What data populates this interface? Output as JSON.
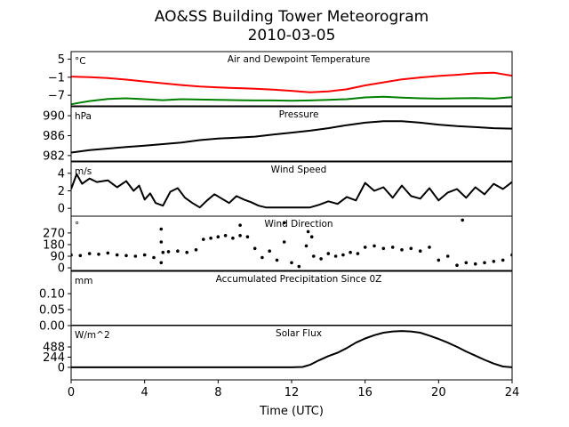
{
  "figure": {
    "title": "AO&SS Building Tower Meteorogram",
    "subtitle": "2010-03-05",
    "xlabel": "Time (UTC)"
  },
  "chart_data": [
    {
      "id": "temperature",
      "type": "line",
      "title": "Air and Dewpoint Temperature",
      "unit": "°C",
      "yticks": [
        5,
        -1,
        -7
      ],
      "yticklabels": [
        "5",
        "−1",
        "−7"
      ],
      "ylim": [
        -10.5,
        7.5
      ],
      "xlim": [
        0,
        24
      ],
      "series": [
        {
          "color": "#ff0000",
          "x": [
            0,
            1,
            2,
            3,
            4,
            5,
            6,
            7,
            8,
            9,
            10,
            11,
            12,
            13,
            14,
            15,
            16,
            17,
            18,
            19,
            20,
            21,
            22,
            23,
            24
          ],
          "values": [
            -0.8,
            -1.0,
            -1.3,
            -1.8,
            -2.4,
            -3.0,
            -3.6,
            -4.1,
            -4.4,
            -4.6,
            -4.8,
            -5.1,
            -5.5,
            -6.0,
            -5.7,
            -5.0,
            -3.7,
            -2.7,
            -1.7,
            -1.1,
            -0.6,
            -0.2,
            0.3,
            0.5,
            -0.5
          ]
        },
        {
          "color": "#008000",
          "x": [
            0,
            0.5,
            1,
            2,
            3,
            4,
            5,
            6,
            7,
            8,
            9,
            10,
            11,
            12,
            13,
            14,
            15,
            16,
            17,
            18,
            19,
            20,
            21,
            22,
            23,
            24
          ],
          "values": [
            -10.0,
            -9.4,
            -8.9,
            -8.2,
            -8.0,
            -8.3,
            -8.6,
            -8.3,
            -8.4,
            -8.5,
            -8.6,
            -8.7,
            -8.7,
            -8.8,
            -8.7,
            -8.5,
            -8.3,
            -7.7,
            -7.5,
            -7.8,
            -8.0,
            -8.1,
            -8.0,
            -7.9,
            -8.1,
            -7.6
          ]
        }
      ]
    },
    {
      "id": "pressure",
      "type": "line",
      "title": "Pressure",
      "unit": "hPa",
      "yticks": [
        990,
        986,
        982
      ],
      "yticklabels": [
        "990",
        "986",
        "982"
      ],
      "ylim": [
        980.9,
        991.8
      ],
      "xlim": [
        0,
        24
      ],
      "series": [
        {
          "color": "#000000",
          "x": [
            0,
            1,
            2,
            3,
            4,
            5,
            6,
            7,
            8,
            9,
            10,
            11,
            12,
            13,
            14,
            15,
            16,
            17,
            18,
            19,
            20,
            21,
            22,
            23,
            24
          ],
          "values": [
            982.6,
            983.1,
            983.4,
            983.7,
            984.0,
            984.3,
            984.6,
            985.1,
            985.4,
            985.6,
            985.8,
            986.2,
            986.6,
            987.0,
            987.5,
            988.1,
            988.6,
            988.9,
            988.9,
            988.6,
            988.2,
            987.9,
            987.7,
            987.5,
            987.4
          ]
        }
      ]
    },
    {
      "id": "wind-speed",
      "type": "line",
      "title": "Wind Speed",
      "unit": "m/s",
      "yticks": [
        4,
        2,
        0
      ],
      "yticklabels": [
        "4",
        "2",
        "0"
      ],
      "ylim": [
        -0.9,
        5.3
      ],
      "xlim": [
        0,
        24
      ],
      "series": [
        {
          "color": "#000000",
          "x": [
            0,
            0.3,
            0.6,
            1,
            1.4,
            2,
            2.5,
            3,
            3.4,
            3.7,
            4,
            4.3,
            4.6,
            5,
            5.4,
            5.8,
            6.2,
            6.6,
            7,
            7.4,
            7.8,
            8.2,
            8.6,
            9,
            9.4,
            9.8,
            10.2,
            10.6,
            11,
            11.5,
            12,
            12.5,
            13,
            13.5,
            14,
            14.5,
            15,
            15.5,
            16,
            16.5,
            17,
            17.5,
            18,
            18.5,
            19,
            19.5,
            20,
            20.5,
            21,
            21.5,
            22,
            22.5,
            23,
            23.5,
            24
          ],
          "values": [
            2.2,
            3.9,
            2.8,
            3.4,
            3.0,
            3.2,
            2.4,
            3.1,
            2.0,
            2.6,
            1.0,
            1.7,
            0.6,
            0.3,
            1.9,
            2.3,
            1.2,
            0.6,
            0.1,
            0.9,
            1.6,
            1.1,
            0.6,
            1.4,
            1.0,
            0.7,
            0.3,
            0.1,
            0.1,
            0.1,
            0.1,
            0.1,
            0.1,
            0.4,
            0.8,
            0.5,
            1.3,
            0.9,
            2.9,
            2.0,
            2.4,
            1.2,
            2.6,
            1.4,
            1.1,
            2.3,
            0.9,
            1.8,
            2.2,
            1.2,
            2.4,
            1.6,
            2.8,
            2.2,
            3.0
          ]
        }
      ]
    },
    {
      "id": "wind-direction",
      "type": "scatter",
      "title": "Wind Direction",
      "unit": "°",
      "yticks": [
        270,
        180,
        90,
        0
      ],
      "yticklabels": [
        "270",
        "180",
        "90",
        "0"
      ],
      "ylim": [
        -20,
        400
      ],
      "xlim": [
        0,
        24
      ],
      "series": [
        {
          "color": "#000000",
          "x": [
            0,
            0.5,
            1,
            1.5,
            2,
            2.5,
            3,
            3.5,
            4,
            4.5,
            4.9,
            5.0,
            5.3,
            5.8,
            6.3,
            6.8,
            7.2,
            7.6,
            8.0,
            8.4,
            8.8,
            9.2,
            9.6,
            10.0,
            10.4,
            10.8,
            11.2,
            11.6,
            12.0,
            12.4,
            12.8,
            13.2,
            13.6,
            14.0,
            14.4,
            14.8,
            15.2,
            15.6,
            16.0,
            16.5,
            17.0,
            17.5,
            18.0,
            18.5,
            19.0,
            19.5,
            20.0,
            20.5,
            21.0,
            21.5,
            22.0,
            22.5,
            23.0,
            23.5,
            24.0,
            4.9,
            4.9,
            9.2,
            11.6,
            12.9,
            13.1,
            21.3
          ],
          "values": [
            100,
            95,
            110,
            105,
            115,
            100,
            95,
            90,
            100,
            80,
            40,
            120,
            125,
            130,
            120,
            140,
            220,
            230,
            240,
            250,
            230,
            250,
            240,
            150,
            80,
            130,
            60,
            200,
            40,
            10,
            170,
            90,
            70,
            110,
            90,
            100,
            120,
            110,
            160,
            170,
            150,
            160,
            140,
            150,
            130,
            160,
            60,
            90,
            20,
            40,
            30,
            40,
            50,
            60,
            100,
            300,
            200,
            330,
            350,
            280,
            240,
            370
          ]
        }
      ]
    },
    {
      "id": "precipitation",
      "type": "line",
      "title": "Accumulated Precipitation Since 0Z",
      "unit": "mm",
      "yticks": [
        0.1,
        0.05,
        0.0
      ],
      "yticklabels": [
        "0.10",
        "0.05",
        "0.00"
      ],
      "ylim": [
        0,
        0.17
      ],
      "xlim": [
        0,
        24
      ],
      "series": [
        {
          "color": "#000000",
          "x": [
            0,
            24
          ],
          "values": [
            0,
            0
          ]
        }
      ]
    },
    {
      "id": "solar-flux",
      "type": "line",
      "title": "Solar Flux",
      "unit": "W/m^2",
      "yticks": [
        488,
        244,
        0
      ],
      "yticklabels": [
        "488",
        "244",
        "0"
      ],
      "ylim": [
        -300,
        1000
      ],
      "xlim": [
        0,
        24
      ],
      "xticks": [
        0,
        4,
        8,
        12,
        16,
        20,
        24
      ],
      "xticklabels": [
        "0",
        "4",
        "8",
        "12",
        "16",
        "20",
        "24"
      ],
      "series": [
        {
          "color": "#000000",
          "x": [
            0,
            6,
            12,
            12.6,
            13,
            13.5,
            14,
            14.5,
            15,
            15.5,
            16,
            16.5,
            17,
            17.5,
            18,
            18.5,
            19,
            19.5,
            20,
            20.5,
            21,
            21.5,
            22,
            22.5,
            23,
            23.5,
            24
          ],
          "values": [
            0,
            0,
            0,
            10,
            60,
            170,
            270,
            350,
            460,
            590,
            690,
            770,
            830,
            860,
            870,
            860,
            830,
            760,
            680,
            590,
            490,
            380,
            280,
            180,
            90,
            20,
            0
          ]
        }
      ]
    }
  ]
}
